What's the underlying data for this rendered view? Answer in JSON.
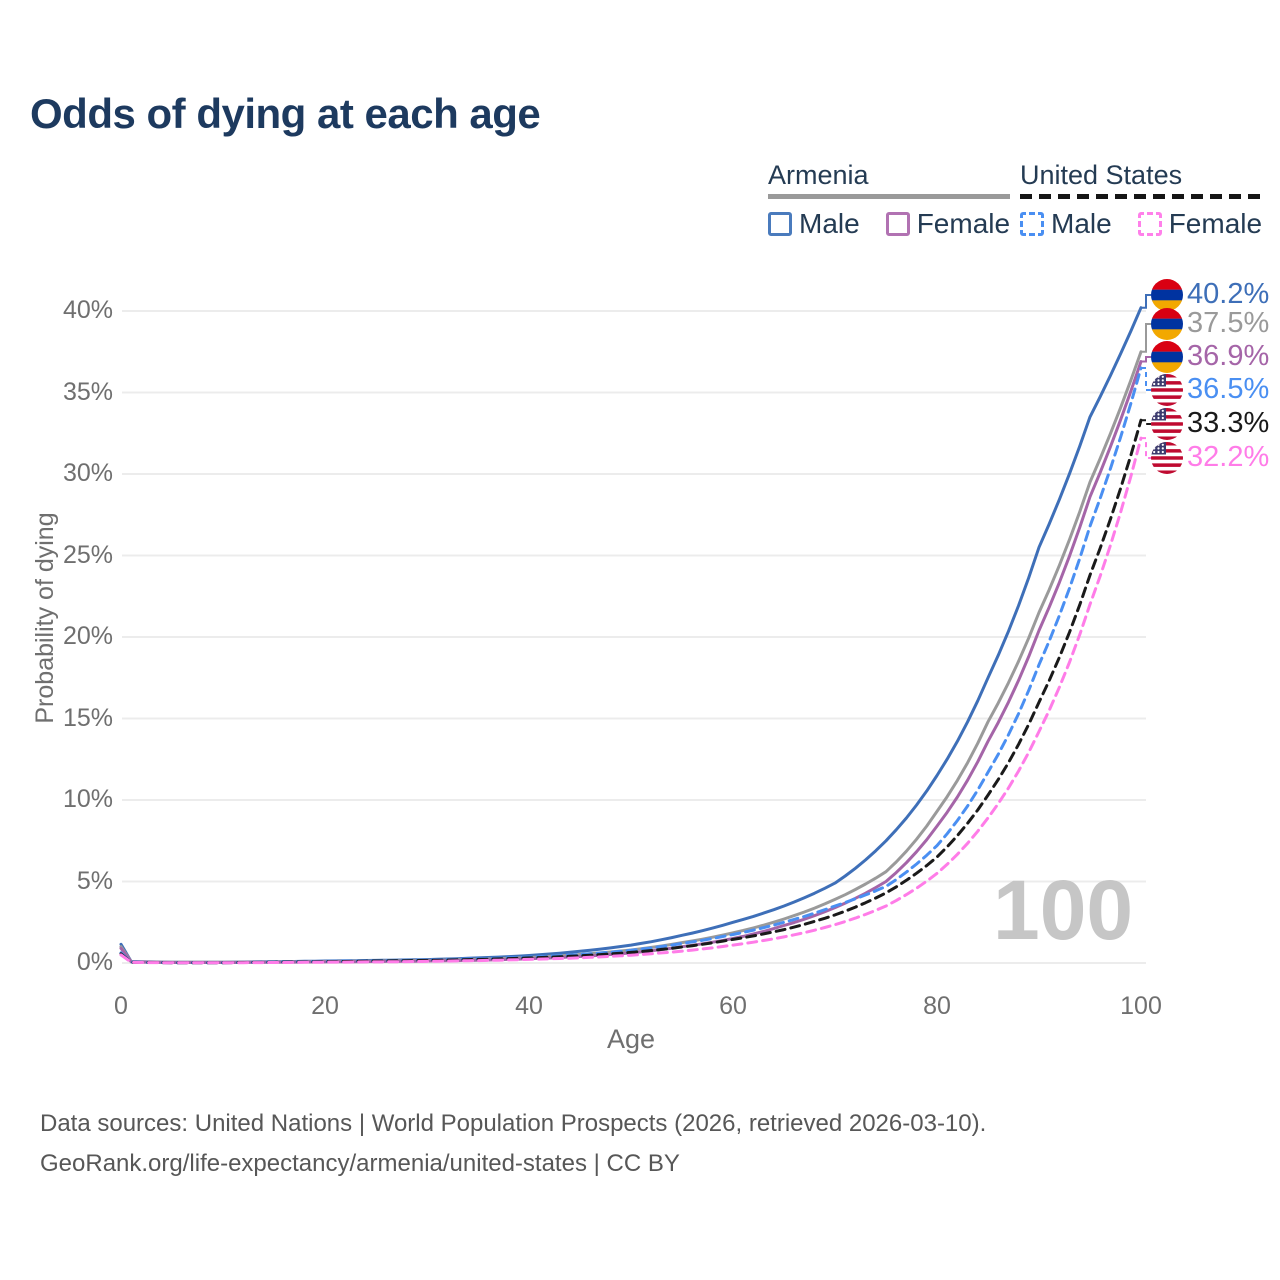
{
  "title": "Odds of dying at each age",
  "legend": {
    "groups": [
      {
        "label": "Armenia",
        "line_style": "solid",
        "line_color": "#9a9a9a",
        "items": [
          {
            "label": "Male",
            "color": "#4a7bbd",
            "style": "solid"
          },
          {
            "label": "Female",
            "color": "#b172b2",
            "style": "solid"
          }
        ]
      },
      {
        "label": "United States",
        "line_style": "dashed",
        "line_color": "#151515",
        "items": [
          {
            "label": "Male",
            "color": "#4a8ff2",
            "style": "dashed"
          },
          {
            "label": "Female",
            "color": "#ff80ea",
            "style": "dashed"
          }
        ]
      }
    ]
  },
  "chart_data": {
    "type": "line",
    "title": "Odds of dying at each age",
    "xlabel": "Age",
    "ylabel": "Probability of dying",
    "watermark": "100",
    "grid": true,
    "xlim": [
      0,
      100
    ],
    "ylim": [
      0,
      42
    ],
    "x_ticks": [
      "0",
      "20",
      "40",
      "60",
      "80",
      "100"
    ],
    "x_tick_values": [
      0,
      20,
      40,
      60,
      80,
      100
    ],
    "y_ticks": [
      "0%",
      "5%",
      "10%",
      "15%",
      "20%",
      "25%",
      "30%",
      "35%",
      "40%"
    ],
    "y_tick_values": [
      0,
      5,
      10,
      15,
      20,
      25,
      30,
      35,
      40
    ],
    "ages": [
      0,
      1,
      5,
      10,
      15,
      20,
      25,
      30,
      35,
      40,
      45,
      50,
      55,
      60,
      65,
      70,
      75,
      80,
      85,
      90,
      95,
      100
    ],
    "series": [
      {
        "name": "Armenia Male",
        "flag": "armenia",
        "color": "#3e6fb8",
        "dash": false,
        "end_label": "40.2%",
        "end_value": 40.2,
        "values": [
          1.15,
          0.09,
          0.05,
          0.05,
          0.08,
          0.12,
          0.16,
          0.21,
          0.31,
          0.46,
          0.72,
          1.1,
          1.7,
          2.5,
          3.5,
          4.9,
          7.5,
          11.5,
          17.5,
          25.5,
          33.5,
          40.2
        ]
      },
      {
        "name": "Armenia",
        "flag": "armenia",
        "color": "#9a9a9a",
        "dash": false,
        "end_label": "37.5%",
        "end_value": 37.5,
        "values": [
          1.0,
          0.08,
          0.04,
          0.04,
          0.06,
          0.09,
          0.12,
          0.16,
          0.23,
          0.34,
          0.52,
          0.8,
          1.25,
          1.85,
          2.7,
          3.9,
          5.6,
          9.3,
          14.8,
          21.5,
          29.5,
          37.5
        ]
      },
      {
        "name": "Armenia Female",
        "flag": "armenia",
        "color": "#a565a8",
        "dash": false,
        "end_label": "36.9%",
        "end_value": 36.9,
        "values": [
          0.9,
          0.07,
          0.03,
          0.03,
          0.05,
          0.07,
          0.09,
          0.12,
          0.17,
          0.26,
          0.4,
          0.62,
          1.0,
          1.5,
          2.3,
          3.4,
          5.0,
          8.4,
          13.6,
          20.4,
          28.6,
          36.9
        ]
      },
      {
        "name": "United States Male",
        "flag": "us",
        "color": "#4a8ff2",
        "dash": true,
        "end_label": "36.5%",
        "end_value": 36.5,
        "values": [
          0.62,
          0.05,
          0.02,
          0.02,
          0.06,
          0.1,
          0.14,
          0.19,
          0.26,
          0.36,
          0.52,
          0.78,
          1.2,
          1.75,
          2.5,
          3.5,
          4.7,
          7.2,
          11.7,
          18.3,
          26.8,
          36.5
        ]
      },
      {
        "name": "United States",
        "flag": "us",
        "color": "#1a1a1a",
        "dash": true,
        "end_label": "33.3%",
        "end_value": 33.3,
        "values": [
          0.56,
          0.04,
          0.02,
          0.02,
          0.05,
          0.08,
          0.12,
          0.16,
          0.22,
          0.31,
          0.44,
          0.65,
          0.98,
          1.45,
          2.05,
          2.95,
          4.3,
          6.5,
          10.3,
          16.0,
          23.8,
          33.3
        ]
      },
      {
        "name": "United States Female",
        "flag": "us",
        "color": "#ff7ce8",
        "dash": true,
        "end_label": "32.2%",
        "end_value": 32.2,
        "values": [
          0.5,
          0.04,
          0.015,
          0.015,
          0.03,
          0.05,
          0.07,
          0.1,
          0.15,
          0.22,
          0.32,
          0.48,
          0.73,
          1.1,
          1.6,
          2.35,
          3.5,
          5.5,
          8.9,
          14.2,
          22.0,
          32.2
        ]
      }
    ],
    "legend_position": "top-right"
  },
  "footer": {
    "line1": "Data sources: United Nations | World Population Prospects (2026, retrieved 2026-03-10).",
    "line2": "GeoRank.org/life-expectancy/armenia/united-states | CC BY"
  }
}
